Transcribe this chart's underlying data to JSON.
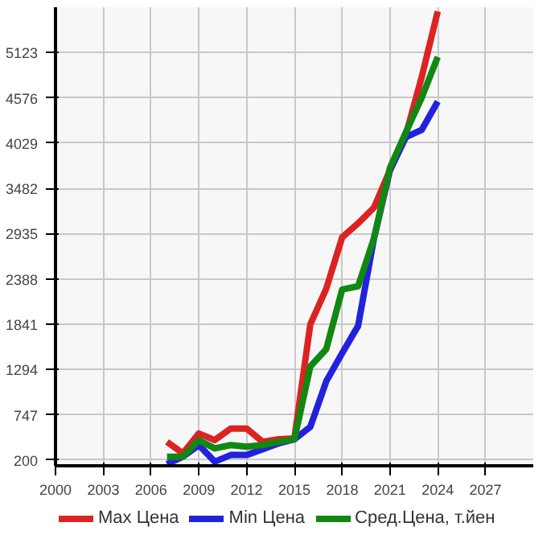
{
  "chart_data": {
    "type": "line",
    "x": [
      2007,
      2008,
      2009,
      2010,
      2011,
      2012,
      2013,
      2014,
      2015,
      2016,
      2017,
      2018,
      2019,
      2020,
      2021,
      2022,
      2023,
      2024
    ],
    "series": [
      {
        "name": "Max Цена",
        "color": "#dd2222",
        "values": [
          420,
          280,
          520,
          440,
          580,
          580,
          420,
          450,
          460,
          1840,
          2270,
          2890,
          3060,
          3250,
          3700,
          4130,
          4830,
          5620
        ]
      },
      {
        "name": "Min Цена",
        "color": "#2222dd",
        "values": [
          150,
          240,
          380,
          180,
          260,
          260,
          330,
          400,
          450,
          600,
          1150,
          1490,
          1820,
          2880,
          3700,
          4100,
          4190,
          4530
        ]
      },
      {
        "name": "Сред.Цена, т.йен",
        "color": "#118811",
        "values": [
          240,
          240,
          440,
          340,
          380,
          360,
          380,
          420,
          450,
          1330,
          1540,
          2260,
          2300,
          2880,
          3730,
          4160,
          4580,
          5070
        ]
      }
    ],
    "xlim": [
      2000,
      2030
    ],
    "xticks": [
      2000,
      2003,
      2006,
      2009,
      2012,
      2015,
      2018,
      2021,
      2024,
      2027
    ],
    "ylim": [
      130,
      5670
    ],
    "yticks": [
      200,
      747,
      1294,
      1841,
      2388,
      2935,
      3482,
      4029,
      4576,
      5123
    ],
    "grid": true,
    "legend": "bottom",
    "line_style": "solid"
  }
}
